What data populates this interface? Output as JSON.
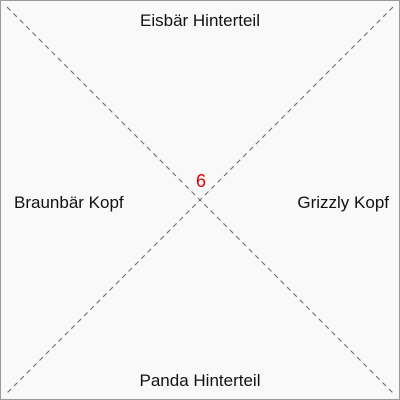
{
  "tile": {
    "number": "6",
    "number_color": "#e00000",
    "edges": {
      "top": "Eisbär Hinterteil",
      "right": "Grizzly Kopf",
      "bottom": "Panda Hinterteil",
      "left": "Braunbär Kopf"
    }
  }
}
